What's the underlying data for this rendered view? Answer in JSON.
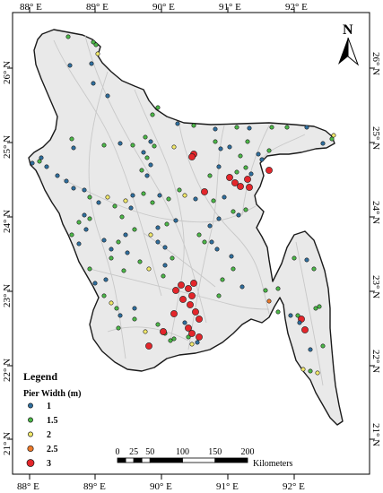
{
  "longitude_ticks": [
    "88° E",
    "89° E",
    "90° E",
    "91° E",
    "92° E"
  ],
  "latitude_ticks": [
    "26° N",
    "25° N",
    "24° N",
    "23° N",
    "22° N",
    "21° N"
  ],
  "north_arrow": {
    "label": "N",
    "icon": "north-arrow-icon"
  },
  "legend": {
    "title": "Legend",
    "subtitle": "Pier Width (m)",
    "items": [
      {
        "label": "1",
        "color": "#2f6f9f"
      },
      {
        "label": "1.5",
        "color": "#4cb848"
      },
      {
        "label": "2",
        "color": "#f3ea6b"
      },
      {
        "label": "2.5",
        "color": "#ee7a2a"
      },
      {
        "label": "3",
        "color": "#e3262b"
      }
    ]
  },
  "scale_bar": {
    "ticks": [
      "0",
      "25",
      "50",
      "100",
      "150",
      "200"
    ],
    "unit": "Kilometers"
  },
  "colors": {
    "land_fill": "#e9e9e9",
    "border": "#1a1a1a",
    "rivers": "#c8c8c8"
  }
}
